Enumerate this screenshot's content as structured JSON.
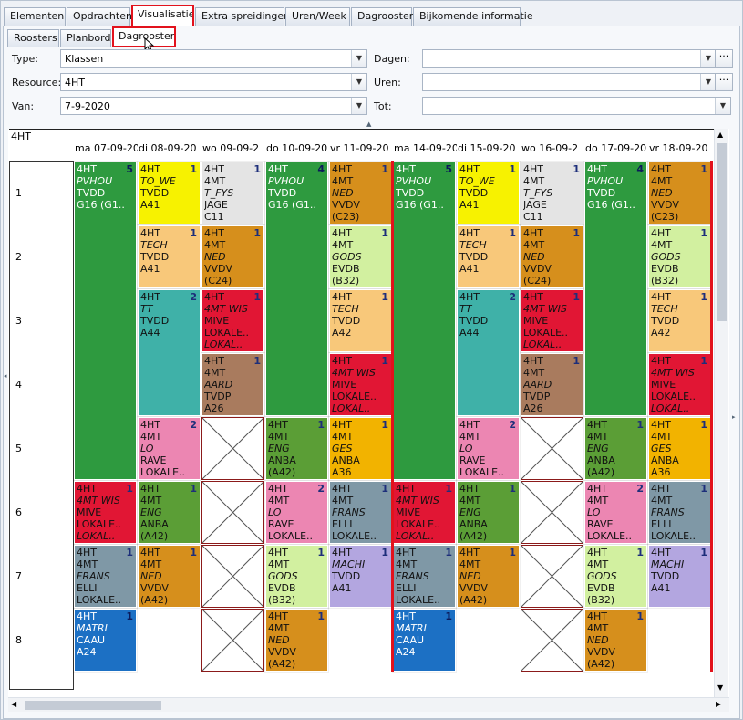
{
  "tabs_top": [
    "Elementen",
    "Opdrachten",
    "Visualisatie",
    "Extra spreidingen",
    "Uren/Week",
    "Dagrooster",
    "Bijkomende informatie"
  ],
  "tabs_sub": [
    "Roosters",
    "Planbord",
    "Dagrooster"
  ],
  "filters": {
    "type_label": "Type:",
    "type_value": "Klassen",
    "resource_label": "Resource:",
    "resource_value": "4HT",
    "van_label": "Van:",
    "van_value": "7-9-2020",
    "dagen_label": "Dagen:",
    "dagen_value": "",
    "uren_label": "Uren:",
    "uren_value": "",
    "tot_label": "Tot:",
    "tot_value": ""
  },
  "grid": {
    "corner": "4HT",
    "days": [
      "ma 07-09-20",
      "di 08-09-20",
      "wo 09-09-2",
      "do 10-09-20",
      "vr 11-09-20",
      "ma 14-09-20",
      "di 15-09-20",
      "wo 16-09-2",
      "do 17-09-20",
      "vr 18-09-20"
    ],
    "hours": [
      "1",
      "2",
      "3",
      "4",
      "5",
      "6",
      "7",
      "8"
    ]
  },
  "colors": {
    "green": "#2e9a3f",
    "yellow": "#f7f200",
    "lightgray": "#e4e4e4",
    "orange": "#d68f1c",
    "peach": "#f8c87a",
    "lightgreen": "#d2f0a0",
    "teal": "#3fb1a8",
    "red": "#e11634",
    "brown": "#a97b5e",
    "pink": "#ec86b2",
    "gold": "#f2b300",
    "midgreen": "#5b9e36",
    "bluegray": "#7f98a6",
    "lavender": "#b3a6e0",
    "blue": "#1c70c4",
    "accent_red": "#e2121c"
  },
  "lessons": [
    {
      "day": 0,
      "hour": 0,
      "span": 5,
      "color": "green",
      "num": "5",
      "lines": [
        "4HT",
        "PVHOU",
        "TVDD",
        "G16 (G1.."
      ],
      "italic": [
        1
      ]
    },
    {
      "day": 0,
      "hour": 5,
      "span": 1,
      "color": "red",
      "num": "1",
      "lines": [
        "4HT",
        "4MT WIS",
        "MIVE",
        "LOKALE..",
        "LOKAL.."
      ],
      "italic": [
        1,
        4
      ]
    },
    {
      "day": 0,
      "hour": 6,
      "span": 1,
      "color": "bluegray",
      "num": "1",
      "lines": [
        "4HT",
        "4MT",
        "FRANS",
        "ELLI",
        "LOKALE.."
      ],
      "italic": [
        2
      ]
    },
    {
      "day": 0,
      "hour": 7,
      "span": 1,
      "color": "blue",
      "num": "1",
      "lines": [
        "4HT",
        "MATRI",
        "CAAU",
        "A24"
      ],
      "italic": [
        1
      ]
    },
    {
      "day": 1,
      "hour": 0,
      "span": 1,
      "color": "yellow",
      "num": "1",
      "lines": [
        "4HT",
        "TO_WE",
        "TVDD",
        "A41"
      ],
      "italic": [
        1
      ]
    },
    {
      "day": 1,
      "hour": 1,
      "span": 1,
      "color": "peach",
      "num": "1",
      "lines": [
        "4HT",
        "TECH",
        "TVDD",
        "A41"
      ],
      "italic": [
        1
      ]
    },
    {
      "day": 1,
      "hour": 2,
      "span": 2,
      "color": "teal",
      "num": "2",
      "lines": [
        "4HT",
        "TT",
        "TVDD",
        "A44"
      ],
      "italic": [
        1
      ]
    },
    {
      "day": 1,
      "hour": 4,
      "span": 1,
      "color": "pink",
      "num": "2",
      "lines": [
        "4HT",
        "4MT",
        "LO",
        "RAVE",
        "LOKALE.."
      ],
      "italic": [
        2
      ]
    },
    {
      "day": 1,
      "hour": 5,
      "span": 1,
      "color": "midgreen",
      "num": "1",
      "lines": [
        "4HT",
        "4MT",
        "ENG",
        "ANBA",
        "(A42)"
      ],
      "italic": [
        2
      ]
    },
    {
      "day": 1,
      "hour": 6,
      "span": 1,
      "color": "orange",
      "num": "1",
      "lines": [
        "4HT",
        "4MT",
        "NED",
        "VVDV",
        "(A42)"
      ],
      "italic": [
        2
      ]
    },
    {
      "day": 2,
      "hour": 0,
      "span": 1,
      "color": "lightgray",
      "num": "1",
      "lines": [
        "4HT",
        "4MT",
        "T_FYS",
        "JAGE",
        "C11"
      ],
      "italic": [
        2
      ]
    },
    {
      "day": 2,
      "hour": 1,
      "span": 1,
      "color": "orange",
      "num": "1",
      "lines": [
        "4HT",
        "4MT",
        "NED",
        "VVDV",
        "(C24)"
      ],
      "italic": [
        2
      ]
    },
    {
      "day": 2,
      "hour": 2,
      "span": 1,
      "color": "red",
      "num": "1",
      "lines": [
        "4HT",
        "4MT WIS",
        "MIVE",
        "LOKALE..",
        "LOKAL.."
      ],
      "italic": [
        1,
        4
      ]
    },
    {
      "day": 2,
      "hour": 3,
      "span": 1,
      "color": "brown",
      "num": "1",
      "lines": [
        "4HT",
        "4MT",
        "AARD",
        "TVDP",
        "A26"
      ],
      "italic": [
        2
      ]
    },
    {
      "day": 3,
      "hour": 0,
      "span": 4,
      "color": "green",
      "num": "4",
      "lines": [
        "4HT",
        "PVHOU",
        "TVDD",
        "G16 (G1.."
      ],
      "italic": [
        1
      ]
    },
    {
      "day": 3,
      "hour": 4,
      "span": 1,
      "color": "midgreen",
      "num": "1",
      "lines": [
        "4HT",
        "4MT",
        "ENG",
        "ANBA",
        "(A42)"
      ],
      "italic": [
        2
      ]
    },
    {
      "day": 3,
      "hour": 5,
      "span": 1,
      "color": "pink",
      "num": "2",
      "lines": [
        "4HT",
        "4MT",
        "LO",
        "RAVE",
        "LOKALE.."
      ],
      "italic": [
        2
      ]
    },
    {
      "day": 3,
      "hour": 6,
      "span": 1,
      "color": "lightgreen",
      "num": "1",
      "lines": [
        "4HT",
        "4MT",
        "GODS",
        "EVDB",
        "(B32)"
      ],
      "italic": [
        2
      ]
    },
    {
      "day": 3,
      "hour": 7,
      "span": 1,
      "color": "orange",
      "num": "1",
      "lines": [
        "4HT",
        "4MT",
        "NED",
        "VVDV",
        "(A42)"
      ],
      "italic": [
        2
      ]
    },
    {
      "day": 4,
      "hour": 0,
      "span": 1,
      "color": "orange",
      "num": "1",
      "lines": [
        "4HT",
        "4MT",
        "NED",
        "VVDV",
        "(C23)"
      ],
      "italic": [
        2
      ]
    },
    {
      "day": 4,
      "hour": 1,
      "span": 1,
      "color": "lightgreen",
      "num": "1",
      "lines": [
        "4HT",
        "4MT",
        "GODS",
        "EVDB",
        "(B32)"
      ],
      "italic": [
        2
      ]
    },
    {
      "day": 4,
      "hour": 2,
      "span": 1,
      "color": "peach",
      "num": "1",
      "lines": [
        "4HT",
        "TECH",
        "TVDD",
        "A42"
      ],
      "italic": [
        1
      ]
    },
    {
      "day": 4,
      "hour": 3,
      "span": 1,
      "color": "red",
      "num": "1",
      "lines": [
        "4HT",
        "4MT WIS",
        "MIVE",
        "LOKALE..",
        "LOKAL.."
      ],
      "italic": [
        1,
        4
      ]
    },
    {
      "day": 4,
      "hour": 4,
      "span": 1,
      "color": "gold",
      "num": "1",
      "lines": [
        "4HT",
        "4MT",
        "GES",
        "ANBA",
        "A36"
      ],
      "italic": [
        2
      ]
    },
    {
      "day": 4,
      "hour": 5,
      "span": 1,
      "color": "bluegray",
      "num": "1",
      "lines": [
        "4HT",
        "4MT",
        "FRANS",
        "ELLI",
        "LOKALE.."
      ],
      "italic": [
        2
      ]
    },
    {
      "day": 4,
      "hour": 6,
      "span": 1,
      "color": "lavender",
      "num": "1",
      "lines": [
        "4HT",
        "MACHI",
        "TVDD",
        "A41"
      ],
      "italic": [
        1
      ]
    },
    {
      "day": 5,
      "hour": 0,
      "span": 5,
      "color": "green",
      "num": "5",
      "lines": [
        "4HT",
        "PVHOU",
        "TVDD",
        "G16 (G1.."
      ],
      "italic": [
        1
      ]
    },
    {
      "day": 5,
      "hour": 5,
      "span": 1,
      "color": "red",
      "num": "1",
      "lines": [
        "4HT",
        "4MT WIS",
        "MIVE",
        "LOKALE..",
        "LOKAL.."
      ],
      "italic": [
        1,
        4
      ]
    },
    {
      "day": 5,
      "hour": 6,
      "span": 1,
      "color": "bluegray",
      "num": "1",
      "lines": [
        "4HT",
        "4MT",
        "FRANS",
        "ELLI",
        "LOKALE.."
      ],
      "italic": [
        2
      ]
    },
    {
      "day": 5,
      "hour": 7,
      "span": 1,
      "color": "blue",
      "num": "1",
      "lines": [
        "4HT",
        "MATRI",
        "CAAU",
        "A24"
      ],
      "italic": [
        1
      ]
    },
    {
      "day": 6,
      "hour": 0,
      "span": 1,
      "color": "yellow",
      "num": "1",
      "lines": [
        "4HT",
        "TO_WE",
        "TVDD",
        "A41"
      ],
      "italic": [
        1
      ]
    },
    {
      "day": 6,
      "hour": 1,
      "span": 1,
      "color": "peach",
      "num": "1",
      "lines": [
        "4HT",
        "TECH",
        "TVDD",
        "A41"
      ],
      "italic": [
        1
      ]
    },
    {
      "day": 6,
      "hour": 2,
      "span": 2,
      "color": "teal",
      "num": "2",
      "lines": [
        "4HT",
        "TT",
        "TVDD",
        "A44"
      ],
      "italic": [
        1
      ]
    },
    {
      "day": 6,
      "hour": 4,
      "span": 1,
      "color": "pink",
      "num": "2",
      "lines": [
        "4HT",
        "4MT",
        "LO",
        "RAVE",
        "LOKALE.."
      ],
      "italic": [
        2
      ]
    },
    {
      "day": 6,
      "hour": 5,
      "span": 1,
      "color": "midgreen",
      "num": "1",
      "lines": [
        "4HT",
        "4MT",
        "ENG",
        "ANBA",
        "(A42)"
      ],
      "italic": [
        2
      ]
    },
    {
      "day": 6,
      "hour": 6,
      "span": 1,
      "color": "orange",
      "num": "1",
      "lines": [
        "4HT",
        "4MT",
        "NED",
        "VVDV",
        "(A42)"
      ],
      "italic": [
        2
      ]
    },
    {
      "day": 7,
      "hour": 0,
      "span": 1,
      "color": "lightgray",
      "num": "1",
      "lines": [
        "4HT",
        "4MT",
        "T_FYS",
        "JAGE",
        "C11"
      ],
      "italic": [
        2
      ]
    },
    {
      "day": 7,
      "hour": 1,
      "span": 1,
      "color": "orange",
      "num": "1",
      "lines": [
        "4HT",
        "4MT",
        "NED",
        "VVDV",
        "(C24)"
      ],
      "italic": [
        2
      ]
    },
    {
      "day": 7,
      "hour": 2,
      "span": 1,
      "color": "red",
      "num": "1",
      "lines": [
        "4HT",
        "4MT WIS",
        "MIVE",
        "LOKALE..",
        "LOKAL.."
      ],
      "italic": [
        1,
        4
      ]
    },
    {
      "day": 7,
      "hour": 3,
      "span": 1,
      "color": "brown",
      "num": "1",
      "lines": [
        "4HT",
        "4MT",
        "AARD",
        "TVDP",
        "A26"
      ],
      "italic": [
        2
      ]
    },
    {
      "day": 8,
      "hour": 0,
      "span": 4,
      "color": "green",
      "num": "4",
      "lines": [
        "4HT",
        "PVHOU",
        "TVDD",
        "G16 (G1.."
      ],
      "italic": [
        1
      ]
    },
    {
      "day": 8,
      "hour": 4,
      "span": 1,
      "color": "midgreen",
      "num": "1",
      "lines": [
        "4HT",
        "4MT",
        "ENG",
        "ANBA",
        "(A42)"
      ],
      "italic": [
        2
      ]
    },
    {
      "day": 8,
      "hour": 5,
      "span": 1,
      "color": "pink",
      "num": "2",
      "lines": [
        "4HT",
        "4MT",
        "LO",
        "RAVE",
        "LOKALE.."
      ],
      "italic": [
        2
      ]
    },
    {
      "day": 8,
      "hour": 6,
      "span": 1,
      "color": "lightgreen",
      "num": "1",
      "lines": [
        "4HT",
        "4MT",
        "GODS",
        "EVDB",
        "(B32)"
      ],
      "italic": [
        2
      ]
    },
    {
      "day": 8,
      "hour": 7,
      "span": 1,
      "color": "orange",
      "num": "1",
      "lines": [
        "4HT",
        "4MT",
        "NED",
        "VVDV",
        "(A42)"
      ],
      "italic": [
        2
      ]
    },
    {
      "day": 9,
      "hour": 0,
      "span": 1,
      "color": "orange",
      "num": "1",
      "lines": [
        "4HT",
        "4MT",
        "NED",
        "VVDV",
        "(C23)"
      ],
      "italic": [
        2
      ]
    },
    {
      "day": 9,
      "hour": 1,
      "span": 1,
      "color": "lightgreen",
      "num": "1",
      "lines": [
        "4HT",
        "4MT",
        "GODS",
        "EVDB",
        "(B32)"
      ],
      "italic": [
        2
      ]
    },
    {
      "day": 9,
      "hour": 2,
      "span": 1,
      "color": "peach",
      "num": "1",
      "lines": [
        "4HT",
        "TECH",
        "TVDD",
        "A42"
      ],
      "italic": [
        1
      ]
    },
    {
      "day": 9,
      "hour": 3,
      "span": 1,
      "color": "red",
      "num": "1",
      "lines": [
        "4HT",
        "4MT WIS",
        "MIVE",
        "LOKALE..",
        "LOKAL.."
      ],
      "italic": [
        1,
        4
      ]
    },
    {
      "day": 9,
      "hour": 4,
      "span": 1,
      "color": "gold",
      "num": "1",
      "lines": [
        "4HT",
        "4MT",
        "GES",
        "ANBA",
        "A36"
      ],
      "italic": [
        2
      ]
    },
    {
      "day": 9,
      "hour": 5,
      "span": 1,
      "color": "bluegray",
      "num": "1",
      "lines": [
        "4HT",
        "4MT",
        "FRANS",
        "ELLI",
        "LOKALE.."
      ],
      "italic": [
        2
      ]
    },
    {
      "day": 9,
      "hour": 6,
      "span": 1,
      "color": "lavender",
      "num": "1",
      "lines": [
        "4HT",
        "MACHI",
        "TVDD",
        "A41"
      ],
      "italic": [
        1
      ]
    }
  ],
  "blocked": [
    {
      "day": 2,
      "hours": [
        4,
        5,
        6,
        7
      ]
    },
    {
      "day": 7,
      "hours": [
        4,
        5,
        6,
        7
      ]
    }
  ]
}
